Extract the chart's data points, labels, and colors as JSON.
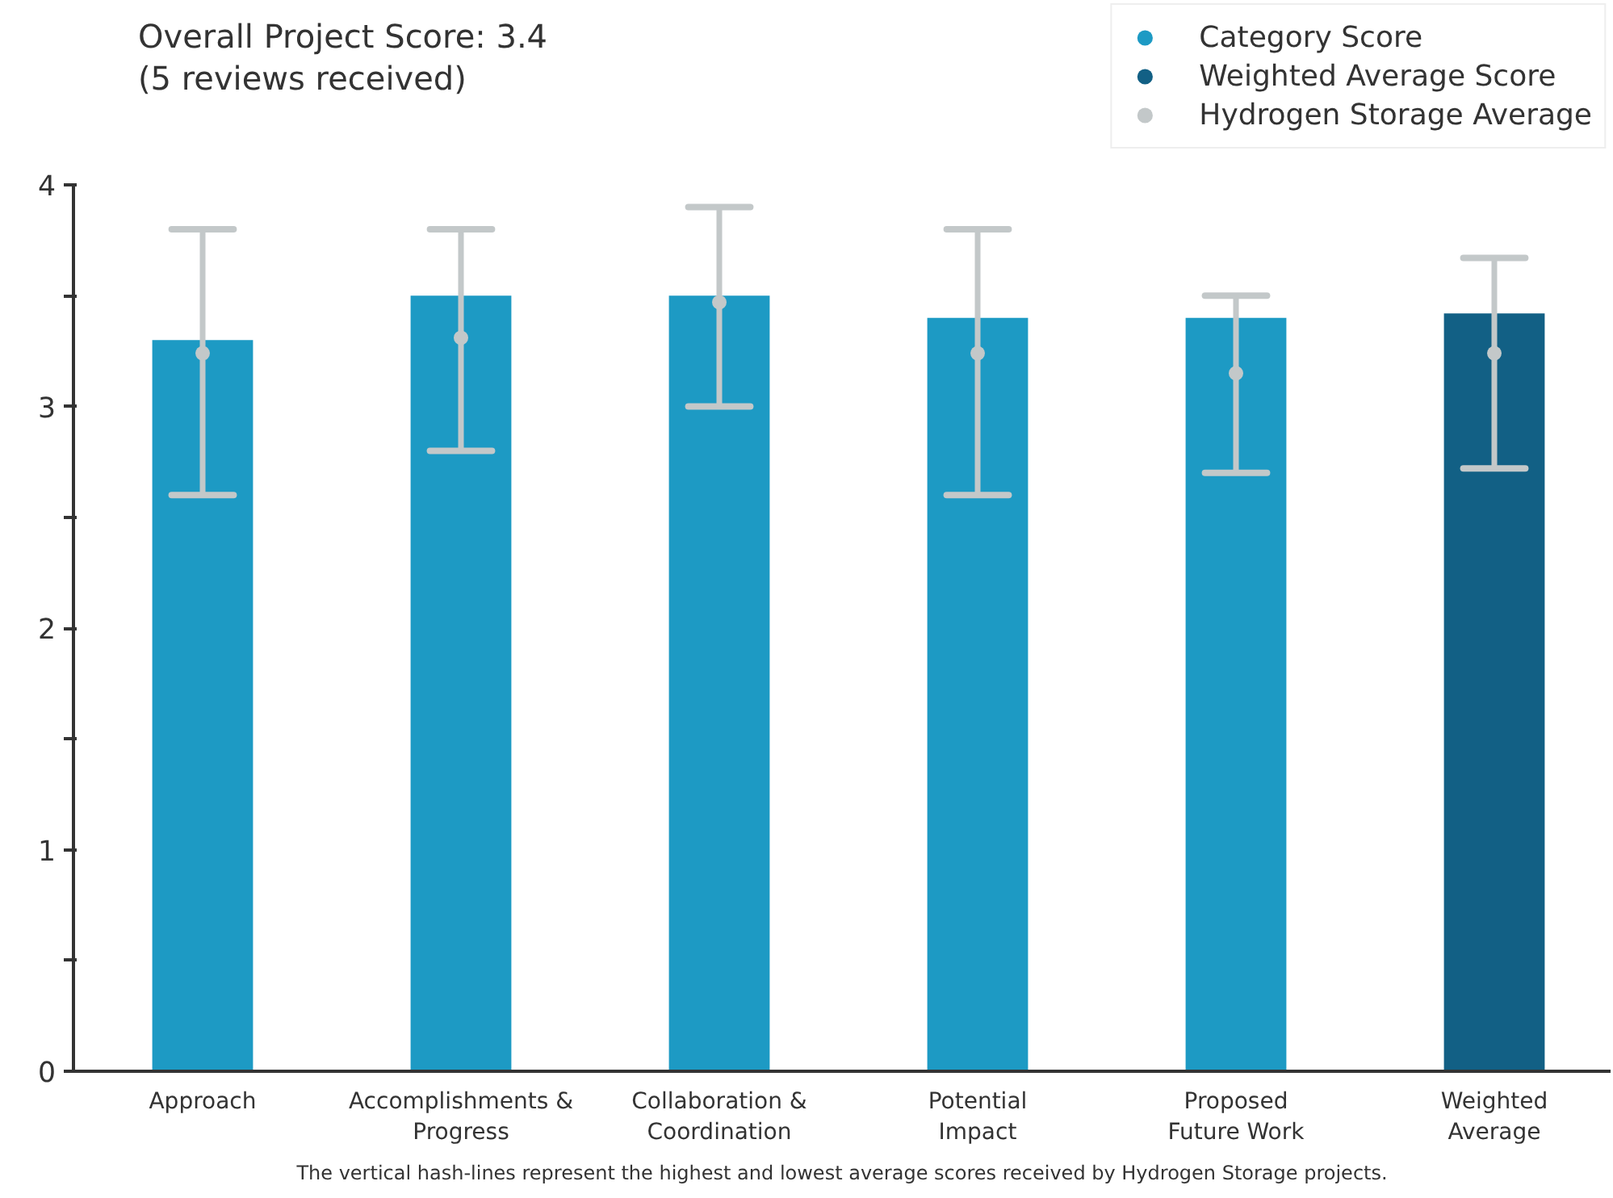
{
  "chart_data": {
    "type": "bar",
    "title": "Overall Project Score: 3.4",
    "subtitle": "(5 reviews received)",
    "categories": [
      "Approach",
      "Accomplishments & Progress",
      "Collaboration & Coordination",
      "Potential Impact",
      "Proposed Future Work",
      "Weighted Average"
    ],
    "series": [
      {
        "name": "Category Score",
        "color": "#1d9ac4",
        "values": [
          3.3,
          3.5,
          3.5,
          3.4,
          3.4,
          null
        ]
      },
      {
        "name": "Weighted Average Score",
        "color": "#126085",
        "values": [
          null,
          null,
          null,
          null,
          null,
          3.42
        ]
      },
      {
        "name": "Hydrogen Storage Average",
        "type": "scatter",
        "color": "#c3c8c9",
        "x": [
          "Approach",
          "Accomplishments & Progress",
          "Collaboration & Coordination",
          "Potential Impact",
          "Proposed Future Work",
          "Weighted Average"
        ],
        "values": [
          3.24,
          3.31,
          3.47,
          3.24,
          3.15,
          3.24
        ],
        "errors": [
          [
            2.6,
            3.8
          ],
          [
            2.8,
            3.8
          ],
          [
            3.0,
            3.9
          ],
          [
            2.6,
            3.8
          ],
          [
            2.7,
            3.5
          ],
          [
            2.72,
            3.67
          ]
        ]
      }
    ],
    "ylim": [
      0,
      4
    ],
    "yticks": [
      0,
      {
        "value": 0.5,
        "label": null
      },
      1,
      {
        "value": 1.5,
        "label": null
      },
      2,
      {
        "value": 2.5,
        "label": null
      },
      3,
      {
        "value": 3.5,
        "label": null
      },
      4
    ],
    "grid": false,
    "legend": "top right",
    "marker": "circle",
    "annotations": [
      "The vertical hash-lines represent the highest and lowest average scores received by Hydrogen Storage projects."
    ]
  }
}
